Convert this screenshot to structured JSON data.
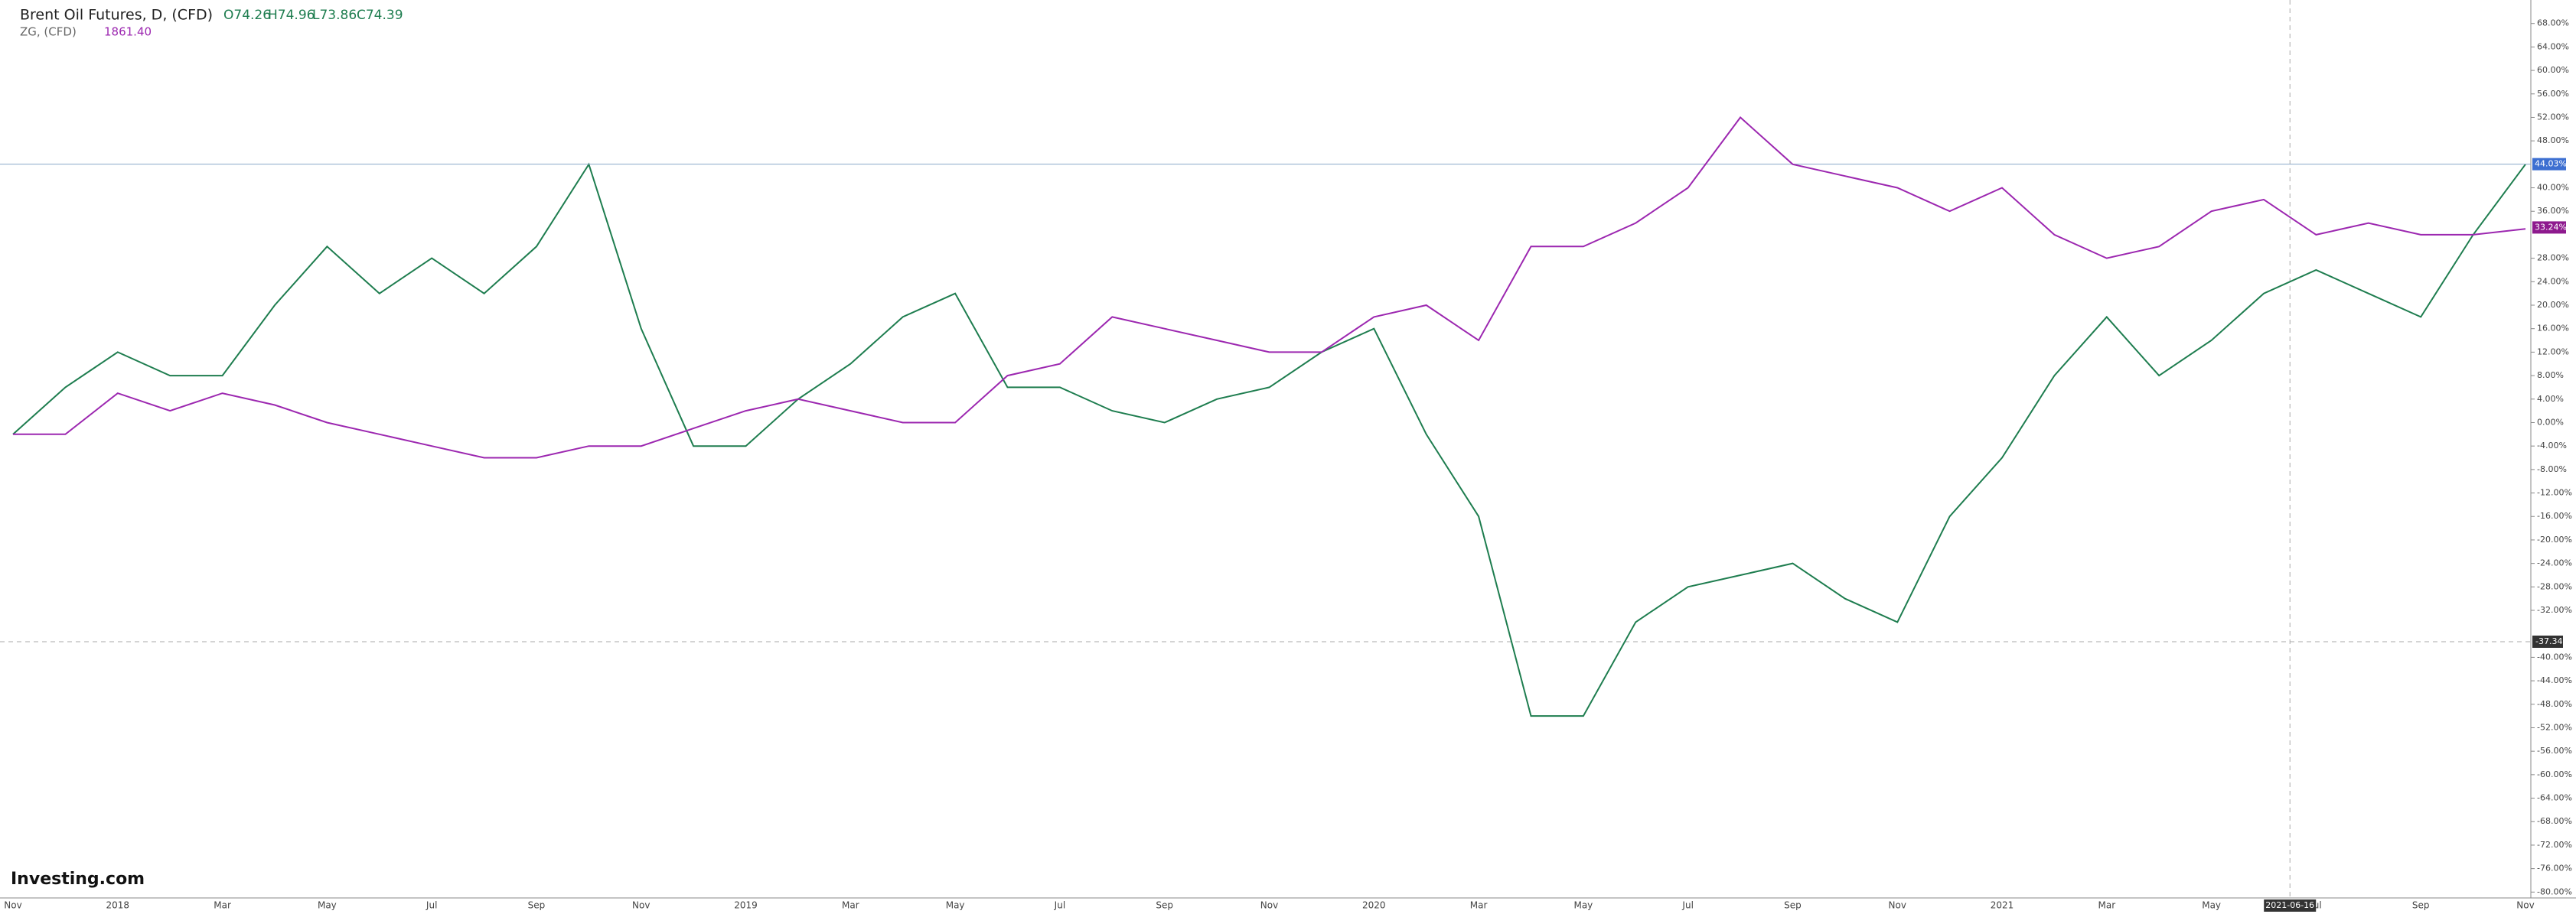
{
  "chart_data": {
    "type": "line",
    "title": "Brent Oil Futures, D, (CFD)",
    "ohlc_texts": [
      "O74.26",
      "H74.96",
      "L73.86",
      "C74.39"
    ],
    "compare_title": "ZG, (CFD)",
    "compare_price": "1861.40",
    "brand": "Investing.com",
    "categories": [
      "Nov",
      null,
      "2018",
      null,
      "Mar",
      null,
      "May",
      null,
      "Jul",
      null,
      "Sep",
      null,
      "Nov",
      null,
      "2019",
      null,
      "Mar",
      null,
      "May",
      null,
      "Jul",
      null,
      "Sep",
      null,
      "Nov",
      null,
      "2020",
      null,
      "Mar",
      null,
      "May",
      null,
      "Jul",
      null,
      "Sep",
      null,
      "Nov",
      null,
      "2021",
      null,
      "Mar",
      null,
      "May",
      null,
      "Jul",
      null,
      "Sep",
      null,
      "Nov"
    ],
    "series": [
      {
        "name": "Brent Oil Futures, D, (CFD)",
        "color": "#1e7d4f",
        "values": [
          -2,
          6,
          12,
          8,
          8,
          20,
          30,
          22,
          28,
          22,
          30,
          44,
          16,
          -4,
          -4,
          4,
          10,
          18,
          22,
          6,
          6,
          2,
          0,
          4,
          6,
          12,
          16,
          -2,
          -16,
          -50,
          -50,
          -34,
          -28,
          -26,
          -24,
          -30,
          -34,
          -16,
          -6,
          8,
          18,
          8,
          14,
          22,
          26,
          22,
          18,
          32,
          44
        ],
        "last": {
          "value": 44.03,
          "label": "44.03%"
        },
        "badge_color": "#3d6fd1"
      },
      {
        "name": "ZG, (CFD)",
        "color": "#9c27b0",
        "values": [
          -2,
          -2,
          5,
          2,
          5,
          3,
          0,
          -2,
          -4,
          -6,
          -6,
          -4,
          -4,
          -1,
          2,
          4,
          2,
          0,
          0,
          8,
          10,
          18,
          16,
          14,
          12,
          12,
          18,
          20,
          14,
          30,
          30,
          34,
          40,
          52,
          44,
          42,
          40,
          36,
          40,
          32,
          28,
          30,
          36,
          38,
          32,
          34,
          32,
          32,
          33
        ],
        "last": {
          "value": 33.24,
          "label": "33.24%"
        },
        "badge_color": "#8e1a8e"
      }
    ],
    "crosshair": {
      "value": -37.34,
      "date": "2021-06-16"
    },
    "ylim": [
      -81,
      72
    ],
    "yticks": [
      {
        "value": 68,
        "label": "68.00%"
      },
      {
        "value": 64,
        "label": "64.00%"
      },
      {
        "value": 60,
        "label": "60.00%"
      },
      {
        "value": 56,
        "label": "56.00%"
      },
      {
        "value": 52,
        "label": "52.00%"
      },
      {
        "value": 48,
        "label": "48.00%"
      },
      {
        "value": 40,
        "label": "40.00%"
      },
      {
        "value": 36,
        "label": "36.00%"
      },
      {
        "value": 28,
        "label": "28.00%"
      },
      {
        "value": 24,
        "label": "24.00%"
      },
      {
        "value": 20,
        "label": "20.00%"
      },
      {
        "value": 16,
        "label": "16.00%"
      },
      {
        "value": 12,
        "label": "12.00%"
      },
      {
        "value": 8,
        "label": "8.00%"
      },
      {
        "value": 4,
        "label": "4.00%"
      },
      {
        "value": 0,
        "label": "0.00%"
      },
      {
        "value": -4,
        "label": "-4.00%"
      },
      {
        "value": -8,
        "label": "-8.00%"
      },
      {
        "value": -12,
        "label": "-12.00%"
      },
      {
        "value": -16,
        "label": "-16.00%"
      },
      {
        "value": -20,
        "label": "-20.00%"
      },
      {
        "value": -24,
        "label": "-24.00%"
      },
      {
        "value": -28,
        "label": "-28.00%"
      },
      {
        "value": -32,
        "label": "-32.00%"
      },
      {
        "value": -40,
        "label": "-40.00%"
      },
      {
        "value": -44,
        "label": "-44.00%"
      },
      {
        "value": -48,
        "label": "-48.00%"
      },
      {
        "value": -52,
        "label": "-52.00%"
      },
      {
        "value": -56,
        "label": "-56.00%"
      },
      {
        "value": -60,
        "label": "-60.00%"
      },
      {
        "value": -64,
        "label": "-64.00%"
      },
      {
        "value": -68,
        "label": "-68.00%"
      },
      {
        "value": -72,
        "label": "-72.00%"
      },
      {
        "value": -76,
        "label": "-76.00%"
      },
      {
        "value": -80,
        "label": "-80.00%"
      }
    ]
  }
}
